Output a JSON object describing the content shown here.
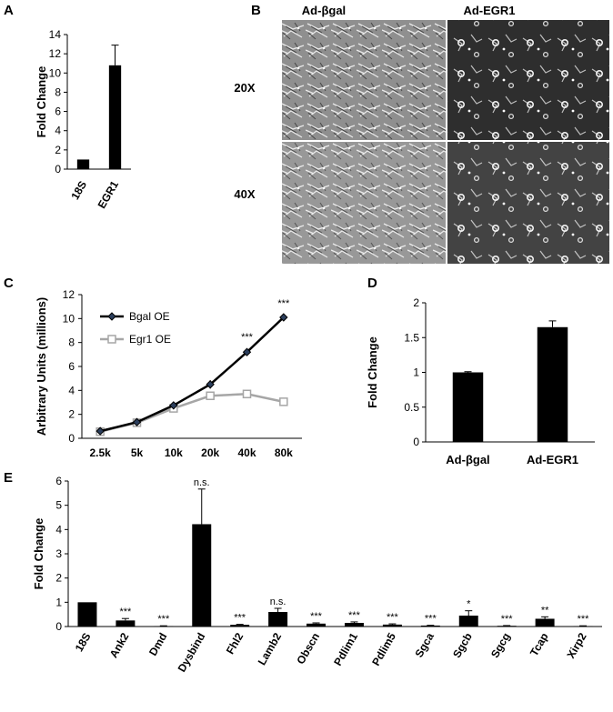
{
  "panels": {
    "A": "A",
    "B": "B",
    "C": "C",
    "D": "D",
    "E": "E"
  },
  "micrographs": {
    "col_labels": [
      "Ad-βgal",
      "Ad-EGR1"
    ],
    "row_labels": [
      "20X",
      "40X"
    ]
  },
  "chart_data": [
    {
      "panel": "A",
      "type": "bar",
      "categories": [
        "18S",
        "EGR1"
      ],
      "values": [
        1,
        10.8
      ],
      "errors": [
        0,
        2.1
      ],
      "ylabel": "Fold Change",
      "ylim": [
        0,
        14
      ],
      "yticks": [
        "0",
        "2",
        "4",
        "6",
        "8",
        "10",
        "12",
        "14"
      ],
      "bar_color": "#000000"
    },
    {
      "panel": "C",
      "type": "line",
      "x": [
        "2.5k",
        "5k",
        "10k",
        "20k",
        "40k",
        "80k"
      ],
      "series": [
        {
          "name": "Bgal OE",
          "values": [
            0.6,
            1.35,
            2.75,
            4.5,
            7.2,
            10.1
          ],
          "errors": [
            0.1,
            0.15,
            0.2,
            0.35,
            0.3,
            0.25
          ],
          "color": "#000000",
          "marker": "diamond"
        },
        {
          "name": "Egr1 OE",
          "values": [
            0.55,
            1.3,
            2.5,
            3.55,
            3.7,
            3.05
          ],
          "errors": [
            0.1,
            0.15,
            0.2,
            0.3,
            0.3,
            0.25
          ],
          "color": "#a6a6a6",
          "marker": "square"
        }
      ],
      "annotations": [
        {
          "x": "40k",
          "text": "***",
          "y": 8.2
        },
        {
          "x": "80k",
          "text": "***",
          "y": 11.0
        }
      ],
      "ylabel": "Arbitrary Units (millions)",
      "ylim": [
        0,
        12
      ],
      "yticks": [
        "0",
        "2",
        "4",
        "6",
        "8",
        "10",
        "12"
      ],
      "legend_position": "top-left"
    },
    {
      "panel": "D",
      "type": "bar",
      "categories": [
        "Ad-βgal",
        "Ad-EGR1"
      ],
      "values": [
        1,
        1.65
      ],
      "errors": [
        0.01,
        0.09
      ],
      "ylabel": "Fold Change",
      "ylim": [
        0,
        2
      ],
      "yticks": [
        "0",
        "0.5",
        "1",
        "1.5",
        "2"
      ],
      "bar_color": "#000000"
    },
    {
      "panel": "E",
      "type": "bar",
      "categories": [
        "18S",
        "Ank2",
        "Dmd",
        "Dysbind",
        "Fhl2",
        "Lamb2",
        "Obscn",
        "Pdlim1",
        "Pdlim5",
        "Sgca",
        "Sgcb",
        "Sgcg",
        "Tcap",
        "Xirp2"
      ],
      "values": [
        1,
        0.25,
        0.02,
        4.22,
        0.07,
        0.6,
        0.12,
        0.15,
        0.08,
        0.04,
        0.45,
        0.03,
        0.32,
        0.02
      ],
      "errors": [
        0,
        0.08,
        0.01,
        1.45,
        0.02,
        0.15,
        0.03,
        0.04,
        0.03,
        0.01,
        0.2,
        0.01,
        0.08,
        0.01
      ],
      "significance": [
        "",
        "***",
        "***",
        "n.s.",
        "***",
        "n.s.",
        "***",
        "***",
        "***",
        "***",
        "*",
        "***",
        "**",
        "***"
      ],
      "ylabel": "Fold Change",
      "ylim": [
        0,
        6
      ],
      "yticks": [
        "0",
        "1",
        "2",
        "3",
        "4",
        "5",
        "6"
      ],
      "bar_color": "#000000"
    }
  ]
}
